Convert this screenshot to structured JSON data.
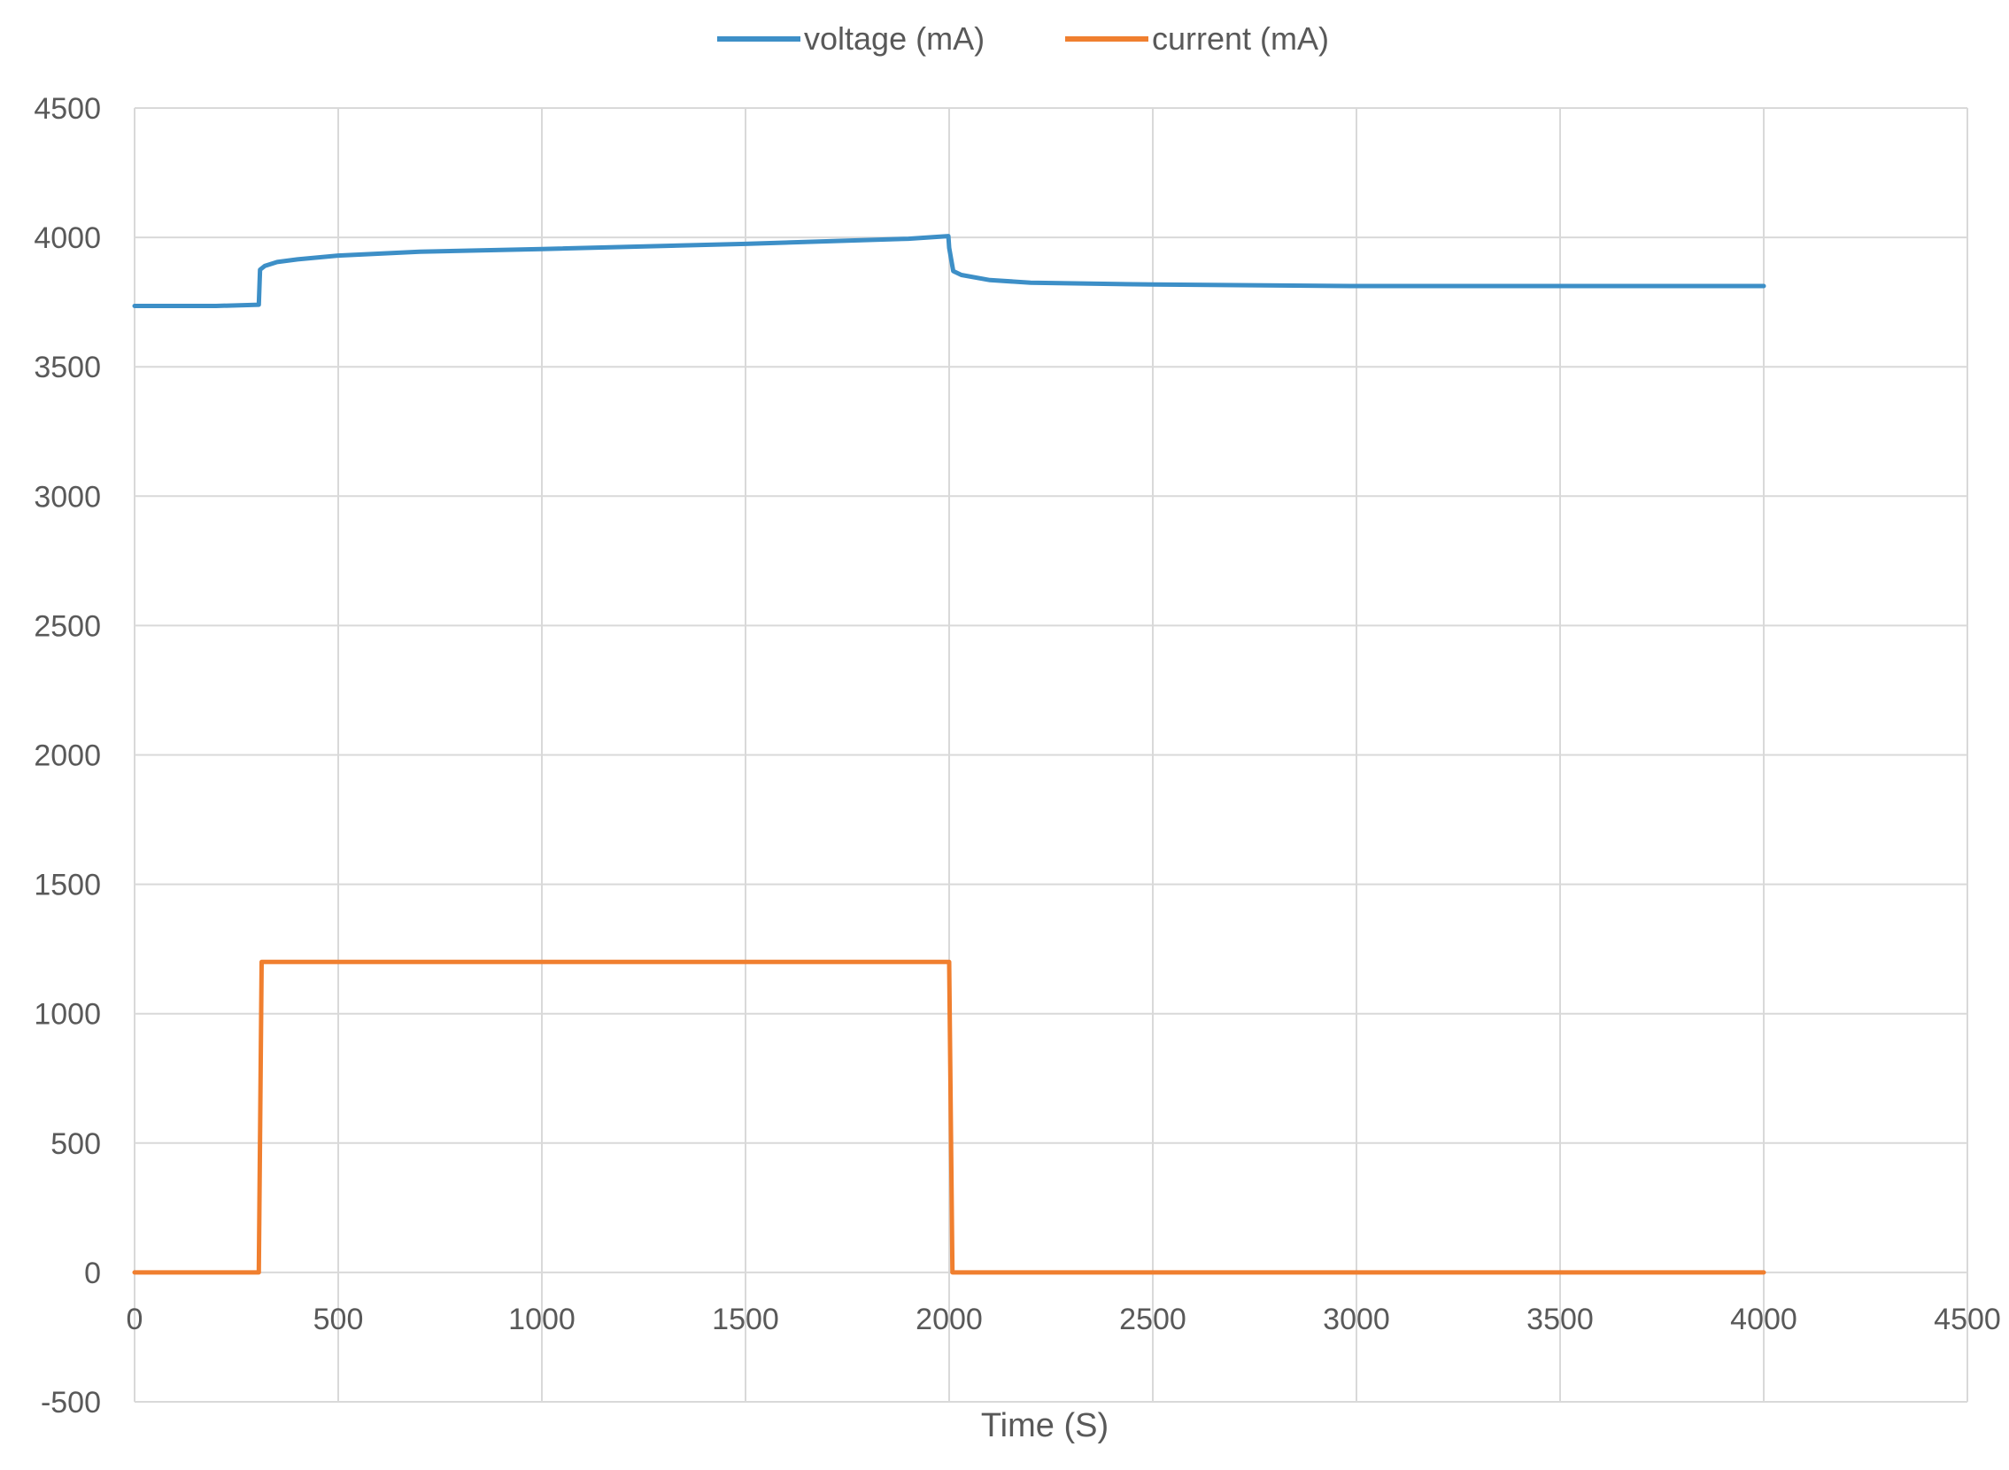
{
  "chart_data": {
    "type": "line",
    "title": "",
    "xlabel": "Time (S)",
    "ylabel": "",
    "xlim": [
      0,
      4500
    ],
    "ylim": [
      -500,
      4500
    ],
    "xticks": [
      "0",
      "500",
      "1000",
      "1500",
      "2000",
      "2500",
      "3000",
      "3500",
      "4000",
      "4500"
    ],
    "yticks": [
      "-500",
      "0",
      "500",
      "1000",
      "1500",
      "2000",
      "2500",
      "3000",
      "3500",
      "4000",
      "4500"
    ],
    "grid": true,
    "legend_position": "top",
    "series": [
      {
        "name": "voltage (mA)",
        "color": "#3d8fc7",
        "x": [
          0,
          100,
          200,
          305,
          308,
          320,
          350,
          400,
          500,
          700,
          1000,
          1500,
          1900,
          1998,
          2000,
          2010,
          2030,
          2100,
          2200,
          2500,
          3000,
          3500,
          4000
        ],
        "y": [
          3735,
          3735,
          3735,
          3740,
          3875,
          3890,
          3905,
          3915,
          3930,
          3945,
          3955,
          3975,
          3995,
          4005,
          3960,
          3870,
          3855,
          3835,
          3825,
          3818,
          3812,
          3812,
          3812
        ]
      },
      {
        "name": "current (mA)",
        "color": "#f07f2f",
        "x": [
          0,
          305,
          312,
          2000,
          2008,
          4000
        ],
        "y": [
          0,
          0,
          1200,
          1200,
          0,
          0
        ]
      }
    ]
  }
}
